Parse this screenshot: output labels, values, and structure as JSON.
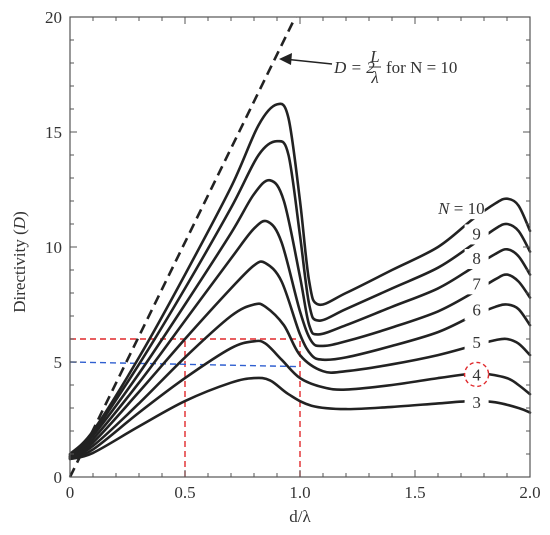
{
  "chart_data": {
    "type": "line",
    "xlabel": "d/λ",
    "ylabel_main": "Directivity",
    "ylabel_var": "D",
    "xlim": [
      0,
      2.0
    ],
    "ylim": [
      0,
      20
    ],
    "x_ticks": [
      "0",
      "0.5",
      "1.0",
      "1.5",
      "2.0"
    ],
    "y_ticks": [
      "0",
      "5",
      "10",
      "15",
      "20"
    ],
    "grid": false,
    "asymptote": {
      "label_parts": [
        "D = 2",
        "L",
        "λ",
        "for N = 10"
      ],
      "points": [
        [
          0,
          0
        ],
        [
          0.98,
          20
        ]
      ]
    },
    "series": [
      {
        "name": "N = 10",
        "points": [
          [
            0,
            1.0
          ],
          [
            0.1,
            2.0
          ],
          [
            0.3,
            5.2
          ],
          [
            0.5,
            8.8
          ],
          [
            0.7,
            12.6
          ],
          [
            0.82,
            15.3
          ],
          [
            0.9,
            16.2
          ],
          [
            0.95,
            15.6
          ],
          [
            1.0,
            12.0
          ],
          [
            1.04,
            8.5
          ],
          [
            1.08,
            7.5
          ],
          [
            1.2,
            8.0
          ],
          [
            1.4,
            9.0
          ],
          [
            1.6,
            10.0
          ],
          [
            1.75,
            11.2
          ],
          [
            1.85,
            11.9
          ],
          [
            1.9,
            12.1
          ],
          [
            1.95,
            11.8
          ],
          [
            2.0,
            10.7
          ]
        ]
      },
      {
        "name": "9",
        "points": [
          [
            0,
            0.95
          ],
          [
            0.1,
            1.9
          ],
          [
            0.3,
            4.9
          ],
          [
            0.5,
            8.2
          ],
          [
            0.7,
            11.7
          ],
          [
            0.82,
            14.0
          ],
          [
            0.9,
            14.6
          ],
          [
            0.95,
            14.0
          ],
          [
            1.0,
            10.5
          ],
          [
            1.04,
            7.5
          ],
          [
            1.08,
            6.8
          ],
          [
            1.2,
            7.3
          ],
          [
            1.4,
            8.2
          ],
          [
            1.6,
            9.1
          ],
          [
            1.75,
            10.1
          ],
          [
            1.85,
            10.8
          ],
          [
            1.9,
            11.0
          ],
          [
            1.95,
            10.7
          ],
          [
            2.0,
            9.8
          ]
        ]
      },
      {
        "name": "8",
        "points": [
          [
            0,
            0.9
          ],
          [
            0.1,
            1.8
          ],
          [
            0.3,
            4.5
          ],
          [
            0.5,
            7.5
          ],
          [
            0.7,
            10.6
          ],
          [
            0.8,
            12.3
          ],
          [
            0.87,
            12.9
          ],
          [
            0.93,
            12.0
          ],
          [
            1.0,
            8.7
          ],
          [
            1.04,
            6.6
          ],
          [
            1.08,
            6.2
          ],
          [
            1.2,
            6.6
          ],
          [
            1.4,
            7.4
          ],
          [
            1.6,
            8.2
          ],
          [
            1.75,
            9.1
          ],
          [
            1.85,
            9.7
          ],
          [
            1.9,
            9.9
          ],
          [
            1.95,
            9.6
          ],
          [
            2.0,
            8.8
          ]
        ]
      },
      {
        "name": "7",
        "points": [
          [
            0,
            0.88
          ],
          [
            0.1,
            1.65
          ],
          [
            0.3,
            4.1
          ],
          [
            0.5,
            6.8
          ],
          [
            0.7,
            9.5
          ],
          [
            0.8,
            10.8
          ],
          [
            0.86,
            11.1
          ],
          [
            0.92,
            10.2
          ],
          [
            1.0,
            7.2
          ],
          [
            1.05,
            5.9
          ],
          [
            1.1,
            5.7
          ],
          [
            1.2,
            5.9
          ],
          [
            1.4,
            6.5
          ],
          [
            1.6,
            7.2
          ],
          [
            1.75,
            8.0
          ],
          [
            1.85,
            8.6
          ],
          [
            1.9,
            8.8
          ],
          [
            1.95,
            8.5
          ],
          [
            2.0,
            7.8
          ]
        ]
      },
      {
        "name": "6",
        "points": [
          [
            0,
            0.85
          ],
          [
            0.1,
            1.5
          ],
          [
            0.3,
            3.7
          ],
          [
            0.5,
            6.0
          ],
          [
            0.7,
            8.2
          ],
          [
            0.8,
            9.2
          ],
          [
            0.85,
            9.3
          ],
          [
            0.92,
            8.5
          ],
          [
            1.0,
            6.2
          ],
          [
            1.05,
            5.3
          ],
          [
            1.1,
            5.1
          ],
          [
            1.2,
            5.2
          ],
          [
            1.4,
            5.7
          ],
          [
            1.6,
            6.3
          ],
          [
            1.75,
            7.0
          ],
          [
            1.85,
            7.4
          ],
          [
            1.9,
            7.5
          ],
          [
            1.95,
            7.3
          ],
          [
            2.0,
            6.6
          ]
        ]
      },
      {
        "name": "5",
        "points": [
          [
            0,
            0.82
          ],
          [
            0.1,
            1.35
          ],
          [
            0.3,
            3.2
          ],
          [
            0.5,
            5.2
          ],
          [
            0.7,
            7.0
          ],
          [
            0.8,
            7.5
          ],
          [
            0.85,
            7.4
          ],
          [
            0.93,
            6.6
          ],
          [
            1.0,
            5.3
          ],
          [
            1.1,
            4.6
          ],
          [
            1.2,
            4.6
          ],
          [
            1.4,
            4.9
          ],
          [
            1.6,
            5.3
          ],
          [
            1.75,
            5.7
          ],
          [
            1.85,
            5.95
          ],
          [
            1.9,
            6.0
          ],
          [
            1.95,
            5.8
          ],
          [
            2.0,
            5.3
          ]
        ]
      },
      {
        "name": "4",
        "points": [
          [
            0,
            0.8
          ],
          [
            0.1,
            1.2
          ],
          [
            0.3,
            2.8
          ],
          [
            0.5,
            4.3
          ],
          [
            0.7,
            5.6
          ],
          [
            0.8,
            5.9
          ],
          [
            0.85,
            5.8
          ],
          [
            0.92,
            5.1
          ],
          [
            1.0,
            4.3
          ],
          [
            1.1,
            3.9
          ],
          [
            1.2,
            3.8
          ],
          [
            1.4,
            4.0
          ],
          [
            1.6,
            4.3
          ],
          [
            1.75,
            4.5
          ],
          [
            1.8,
            4.5
          ],
          [
            1.9,
            4.3
          ],
          [
            1.95,
            4.0
          ],
          [
            2.0,
            3.6
          ]
        ]
      },
      {
        "name": "3",
        "points": [
          [
            0,
            0.78
          ],
          [
            0.1,
            1.05
          ],
          [
            0.3,
            2.2
          ],
          [
            0.5,
            3.3
          ],
          [
            0.7,
            4.1
          ],
          [
            0.8,
            4.3
          ],
          [
            0.87,
            4.2
          ],
          [
            0.95,
            3.6
          ],
          [
            1.05,
            3.1
          ],
          [
            1.2,
            2.95
          ],
          [
            1.4,
            3.05
          ],
          [
            1.6,
            3.2
          ],
          [
            1.75,
            3.3
          ],
          [
            1.85,
            3.25
          ],
          [
            1.95,
            3.0
          ],
          [
            2.0,
            2.8
          ]
        ]
      }
    ],
    "annotations": {
      "red_guides": [
        [
          [
            0,
            6
          ],
          [
            1.0,
            6
          ]
        ],
        [
          [
            0.5,
            0
          ],
          [
            0.5,
            6
          ]
        ],
        [
          [
            1.0,
            0
          ],
          [
            1.0,
            6
          ]
        ]
      ],
      "blue_guide": [
        [
          0,
          5
        ],
        [
          1.0,
          4.8
        ]
      ],
      "highlighted_series": "4",
      "colors": {
        "red": "#e0292c",
        "blue": "#2f5fd0",
        "curve": "#222222",
        "text": "#333333"
      }
    }
  }
}
